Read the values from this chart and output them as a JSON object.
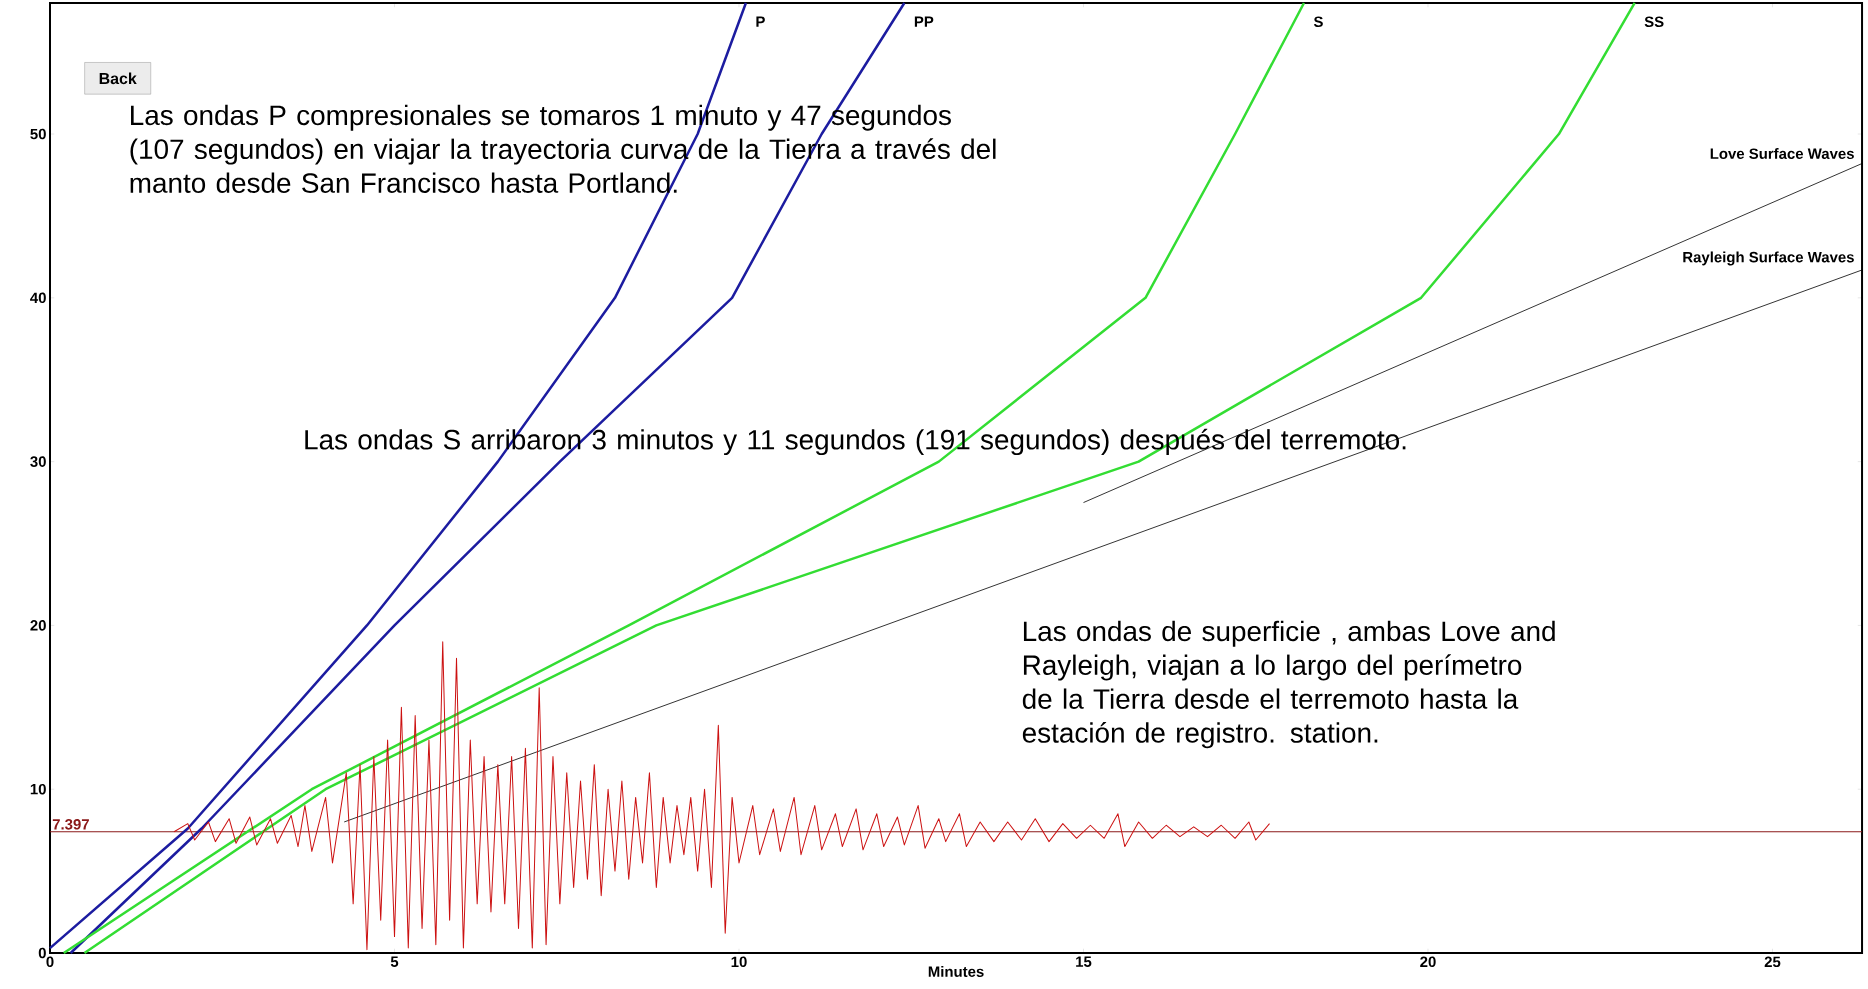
{
  "chart_data": {
    "type": "line",
    "xlabel": "Minutes",
    "xlim": [
      0,
      26.3
    ],
    "xticks": [
      0,
      5,
      10,
      15,
      20,
      25
    ],
    "ylim": [
      0,
      58
    ],
    "yticks": [
      0,
      10,
      20,
      30,
      40,
      50
    ],
    "annotations": [
      "Las ondas P compresionales se tomaros 1 minuto y 47 segundos (107 segundos) en viajar la trayectoria curva de la Tierra a través del manto desde  San Francisco hasta Portland.",
      "Las ondas S arribaron 3 minutos y 11 segundos  (191 segundos) después del terremoto.",
      "Las ondas de superficie , ambas Love and Rayleigh, viajan a lo largo del perímetro de la Tierra desde el terremoto hasta la estación de registro. station.",
      "Back"
    ],
    "ref_lines": [
      {
        "axis": "y",
        "value": 7.397,
        "label": "7.397",
        "color": "#8b1a1a"
      }
    ],
    "series": [
      {
        "name": "P",
        "color": "#1c1ca0",
        "x": [
          0,
          2,
          4.6,
          6.5,
          8.2,
          9.4,
          10.1
        ],
        "values": [
          0.3,
          7.6,
          20,
          30,
          40,
          50,
          58
        ]
      },
      {
        "name": "PP",
        "color": "#1c1ca0",
        "x": [
          0.3,
          2.2,
          5.0,
          7.4,
          9.9,
          11.2,
          12.4
        ],
        "values": [
          0,
          7.6,
          20,
          30,
          40,
          50,
          58
        ]
      },
      {
        "name": "S",
        "color": "#33dd33",
        "x": [
          0.2,
          3.8,
          8.4,
          12.9,
          15.9,
          17.2,
          18.2
        ],
        "values": [
          0,
          10,
          20,
          30,
          40,
          50,
          58
        ]
      },
      {
        "name": "SS",
        "color": "#33dd33",
        "x": [
          0.5,
          4.0,
          8.8,
          15.8,
          19.9,
          21.9,
          23.0
        ],
        "values": [
          0,
          10,
          20,
          30,
          40,
          50,
          58
        ]
      },
      {
        "name": "Love Surface Waves",
        "color": "#000000",
        "x": [
          15.0,
          26.3
        ],
        "values": [
          27.5,
          48.2
        ]
      },
      {
        "name": "Rayleigh Surface Waves",
        "color": "#000000",
        "x": [
          4.27,
          26.3
        ],
        "values": [
          8.0,
          41.7
        ]
      },
      {
        "color": "#cc1111",
        "x": [
          1.8,
          2.0,
          2.1,
          2.3,
          2.4,
          2.6,
          2.7,
          2.9,
          3.0,
          3.2,
          3.3,
          3.5,
          3.6,
          3.7,
          3.8,
          4.0,
          4.1,
          4.3,
          4.4,
          4.5,
          4.6,
          4.7,
          4.8,
          4.9,
          5.0,
          5.1,
          5.2,
          5.3,
          5.4,
          5.5,
          5.6,
          5.7,
          5.8,
          5.9,
          6.0,
          6.1,
          6.2,
          6.3,
          6.4,
          6.5,
          6.6,
          6.7,
          6.8,
          6.9,
          7.0,
          7.1,
          7.2,
          7.3,
          7.4,
          7.5,
          7.6,
          7.7,
          7.8,
          7.9,
          8.0,
          8.1,
          8.2,
          8.3,
          8.4,
          8.5,
          8.6,
          8.7,
          8.8,
          8.9,
          9.0,
          9.1,
          9.2,
          9.3,
          9.4,
          9.5,
          9.6,
          9.7,
          9.8,
          9.9,
          10.0,
          10.2,
          10.3,
          10.5,
          10.6,
          10.8,
          10.9,
          11.1,
          11.2,
          11.4,
          11.5,
          11.7,
          11.8,
          12.0,
          12.1,
          12.3,
          12.4,
          12.6,
          12.7,
          12.9,
          13.0,
          13.2,
          13.3,
          13.5,
          13.7,
          13.9,
          14.1,
          14.3,
          14.5,
          14.7,
          14.9,
          15.1,
          15.3,
          15.5,
          15.6,
          15.8,
          16.0,
          16.2,
          16.4,
          16.6,
          16.8,
          17.0,
          17.2,
          17.4,
          17.5,
          17.7
        ],
        "values": [
          7.4,
          7.9,
          6.9,
          8.0,
          6.8,
          8.2,
          6.7,
          8.3,
          6.6,
          8.2,
          6.7,
          8.4,
          6.5,
          9.0,
          6.2,
          9.5,
          5.5,
          11.0,
          3.0,
          11.5,
          0.2,
          12.0,
          2.0,
          13.0,
          1.0,
          15.0,
          0.3,
          14.5,
          1.5,
          13.0,
          0.5,
          19.0,
          2.0,
          18.0,
          0.3,
          13.0,
          3.0,
          12.0,
          2.5,
          11.5,
          3.0,
          12.0,
          1.5,
          12.5,
          0.3,
          16.2,
          0.5,
          12.0,
          3.0,
          11.0,
          4.0,
          10.5,
          4.5,
          11.5,
          3.5,
          10.0,
          5.0,
          10.5,
          4.5,
          9.5,
          5.5,
          11.0,
          4.0,
          9.5,
          5.5,
          9.0,
          6.0,
          9.5,
          5.0,
          10.0,
          4.0,
          13.9,
          1.2,
          9.5,
          5.5,
          9.0,
          6.0,
          8.8,
          6.2,
          9.5,
          6.0,
          9.0,
          6.3,
          8.5,
          6.5,
          8.8,
          6.3,
          8.5,
          6.5,
          8.3,
          6.6,
          9.0,
          6.4,
          8.2,
          6.8,
          8.5,
          6.5,
          8.0,
          6.8,
          8.0,
          6.9,
          8.2,
          6.8,
          7.9,
          7.0,
          7.8,
          7.0,
          8.5,
          6.5,
          8.0,
          7.0,
          7.8,
          7.1,
          7.7,
          7.1,
          7.8,
          7.0,
          8.0,
          6.9,
          7.9
        ]
      }
    ]
  }
}
